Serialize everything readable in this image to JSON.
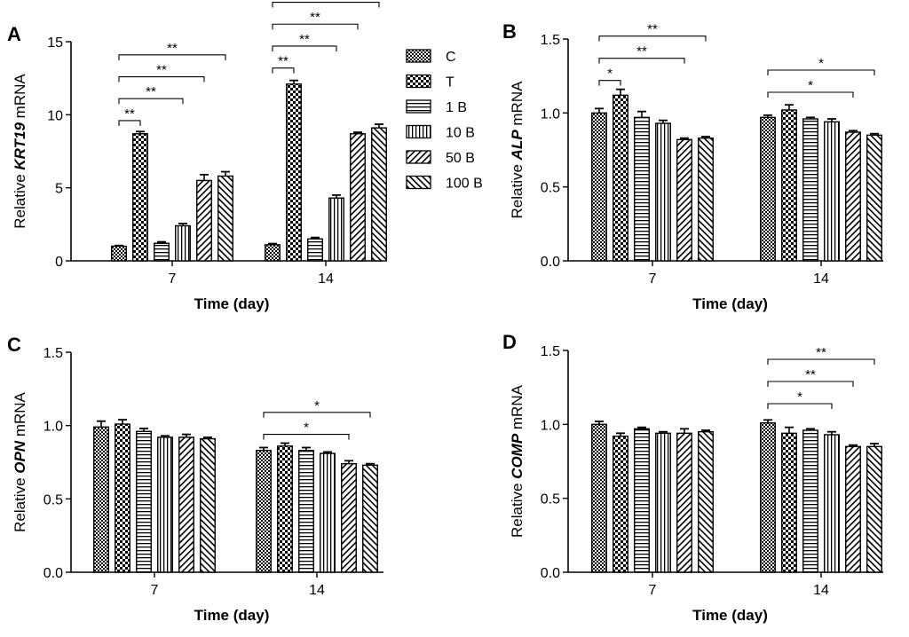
{
  "legend": {
    "items": [
      {
        "label": "C",
        "pattern": "pat-check-fine"
      },
      {
        "label": "T",
        "pattern": "pat-check-coarse"
      },
      {
        "label": "1 B",
        "pattern": "pat-hlines"
      },
      {
        "label": "10 B",
        "pattern": "pat-vlines"
      },
      {
        "label": "50 B",
        "pattern": "pat-diag-right"
      },
      {
        "label": "100 B",
        "pattern": "pat-diag-left"
      }
    ]
  },
  "colors": {
    "ink": "#000000",
    "background": "#ffffff"
  },
  "chart_data": [
    {
      "panel": "A",
      "type": "bar",
      "ylabel_prefix": "Relative ",
      "ylabel_gene": "KRT19",
      "ylabel_suffix": " mRNA",
      "xlabel": "Time (day)",
      "categories": [
        "7",
        "14"
      ],
      "ylim": [
        0,
        15
      ],
      "yticks": [
        0,
        5,
        10,
        15
      ],
      "series": [
        {
          "name": "C",
          "values": [
            1.0,
            1.1
          ],
          "errors": [
            0.05,
            0.08
          ]
        },
        {
          "name": "T",
          "values": [
            8.7,
            12.1
          ],
          "errors": [
            0.15,
            0.25
          ]
        },
        {
          "name": "1 B",
          "values": [
            1.2,
            1.5
          ],
          "errors": [
            0.1,
            0.1
          ]
        },
        {
          "name": "10 B",
          "values": [
            2.4,
            4.3
          ],
          "errors": [
            0.15,
            0.2
          ]
        },
        {
          "name": "50 B",
          "values": [
            5.5,
            8.7
          ],
          "errors": [
            0.4,
            0.1
          ]
        },
        {
          "name": "100 B",
          "values": [
            5.8,
            9.1
          ],
          "errors": [
            0.3,
            0.25
          ]
        }
      ],
      "significance": [
        {
          "group": "7",
          "from": "C",
          "to": "T",
          "y": 9.6,
          "label": "**"
        },
        {
          "group": "7",
          "from": "C",
          "to": "10 B",
          "y": 11.1,
          "label": "**"
        },
        {
          "group": "7",
          "from": "C",
          "to": "50 B",
          "y": 12.6,
          "label": "**"
        },
        {
          "group": "7",
          "from": "C",
          "to": "100 B",
          "y": 14.1,
          "label": "**"
        },
        {
          "group": "14",
          "from": "C",
          "to": "T",
          "y": 13.2,
          "label": "**"
        },
        {
          "group": "14",
          "from": "C",
          "to": "10 B",
          "y": 14.7,
          "label": "**"
        },
        {
          "group": "14",
          "from": "C",
          "to": "50 B",
          "y": 16.2,
          "label": "**"
        },
        {
          "group": "14",
          "from": "C",
          "to": "100 B",
          "y": 17.7,
          "label": "**"
        }
      ]
    },
    {
      "panel": "B",
      "type": "bar",
      "ylabel_prefix": "Relative ",
      "ylabel_gene": "ALP",
      "ylabel_suffix": " mRNA",
      "xlabel": "Time (day)",
      "categories": [
        "7",
        "14"
      ],
      "ylim": [
        0,
        1.5
      ],
      "yticks": [
        0.0,
        0.5,
        1.0,
        1.5
      ],
      "series": [
        {
          "name": "C",
          "values": [
            1.0,
            0.97
          ],
          "errors": [
            0.03,
            0.015
          ]
        },
        {
          "name": "T",
          "values": [
            1.12,
            1.02
          ],
          "errors": [
            0.04,
            0.035
          ]
        },
        {
          "name": "1 B",
          "values": [
            0.97,
            0.96
          ],
          "errors": [
            0.04,
            0.01
          ]
        },
        {
          "name": "10 B",
          "values": [
            0.93,
            0.94
          ],
          "errors": [
            0.02,
            0.02
          ]
        },
        {
          "name": "50 B",
          "values": [
            0.82,
            0.87
          ],
          "errors": [
            0.01,
            0.01
          ]
        },
        {
          "name": "100 B",
          "values": [
            0.83,
            0.85
          ],
          "errors": [
            0.01,
            0.01
          ]
        }
      ],
      "significance": [
        {
          "group": "7",
          "from": "C",
          "to": "T",
          "y": 1.22,
          "label": "*"
        },
        {
          "group": "7",
          "from": "C",
          "to": "50 B",
          "y": 1.37,
          "label": "**"
        },
        {
          "group": "7",
          "from": "C",
          "to": "100 B",
          "y": 1.52,
          "label": "**"
        },
        {
          "group": "14",
          "from": "C",
          "to": "50 B",
          "y": 1.14,
          "label": "*"
        },
        {
          "group": "14",
          "from": "C",
          "to": "100 B",
          "y": 1.29,
          "label": "*"
        }
      ]
    },
    {
      "panel": "C",
      "type": "bar",
      "ylabel_prefix": "Relative ",
      "ylabel_gene": "OPN",
      "ylabel_suffix": " mRNA",
      "xlabel": "Time (day)",
      "categories": [
        "7",
        "14"
      ],
      "ylim": [
        0,
        1.5
      ],
      "yticks": [
        0.0,
        0.5,
        1.0,
        1.5
      ],
      "series": [
        {
          "name": "C",
          "values": [
            0.99,
            0.83
          ],
          "errors": [
            0.04,
            0.02
          ]
        },
        {
          "name": "T",
          "values": [
            1.01,
            0.86
          ],
          "errors": [
            0.03,
            0.02
          ]
        },
        {
          "name": "1 B",
          "values": [
            0.96,
            0.83
          ],
          "errors": [
            0.02,
            0.02
          ]
        },
        {
          "name": "10 B",
          "values": [
            0.92,
            0.81
          ],
          "errors": [
            0.01,
            0.01
          ]
        },
        {
          "name": "50 B",
          "values": [
            0.92,
            0.74
          ],
          "errors": [
            0.02,
            0.02
          ]
        },
        {
          "name": "100 B",
          "values": [
            0.91,
            0.73
          ],
          "errors": [
            0.01,
            0.01
          ]
        }
      ],
      "significance": [
        {
          "group": "14",
          "from": "C",
          "to": "50 B",
          "y": 0.94,
          "label": "*"
        },
        {
          "group": "14",
          "from": "C",
          "to": "100 B",
          "y": 1.09,
          "label": "*"
        }
      ]
    },
    {
      "panel": "D",
      "type": "bar",
      "ylabel_prefix": "Relative ",
      "ylabel_gene": "COMP",
      "ylabel_suffix": " mRNA",
      "xlabel": "Time (day)",
      "categories": [
        "7",
        "14"
      ],
      "ylim": [
        0,
        1.5
      ],
      "yticks": [
        0.0,
        0.5,
        1.0,
        1.5
      ],
      "series": [
        {
          "name": "C",
          "values": [
            1.0,
            1.01
          ],
          "errors": [
            0.02,
            0.02
          ]
        },
        {
          "name": "T",
          "values": [
            0.92,
            0.94
          ],
          "errors": [
            0.02,
            0.04
          ]
        },
        {
          "name": "1 B",
          "values": [
            0.97,
            0.96
          ],
          "errors": [
            0.01,
            0.01
          ]
        },
        {
          "name": "10 B",
          "values": [
            0.94,
            0.93
          ],
          "errors": [
            0.01,
            0.02
          ]
        },
        {
          "name": "50 B",
          "values": [
            0.94,
            0.85
          ],
          "errors": [
            0.03,
            0.01
          ]
        },
        {
          "name": "100 B",
          "values": [
            0.95,
            0.85
          ],
          "errors": [
            0.01,
            0.02
          ]
        }
      ],
      "significance": [
        {
          "group": "14",
          "from": "C",
          "to": "10 B",
          "y": 1.14,
          "label": "*"
        },
        {
          "group": "14",
          "from": "C",
          "to": "50 B",
          "y": 1.29,
          "label": "**"
        },
        {
          "group": "14",
          "from": "C",
          "to": "100 B",
          "y": 1.44,
          "label": "**"
        }
      ]
    }
  ]
}
